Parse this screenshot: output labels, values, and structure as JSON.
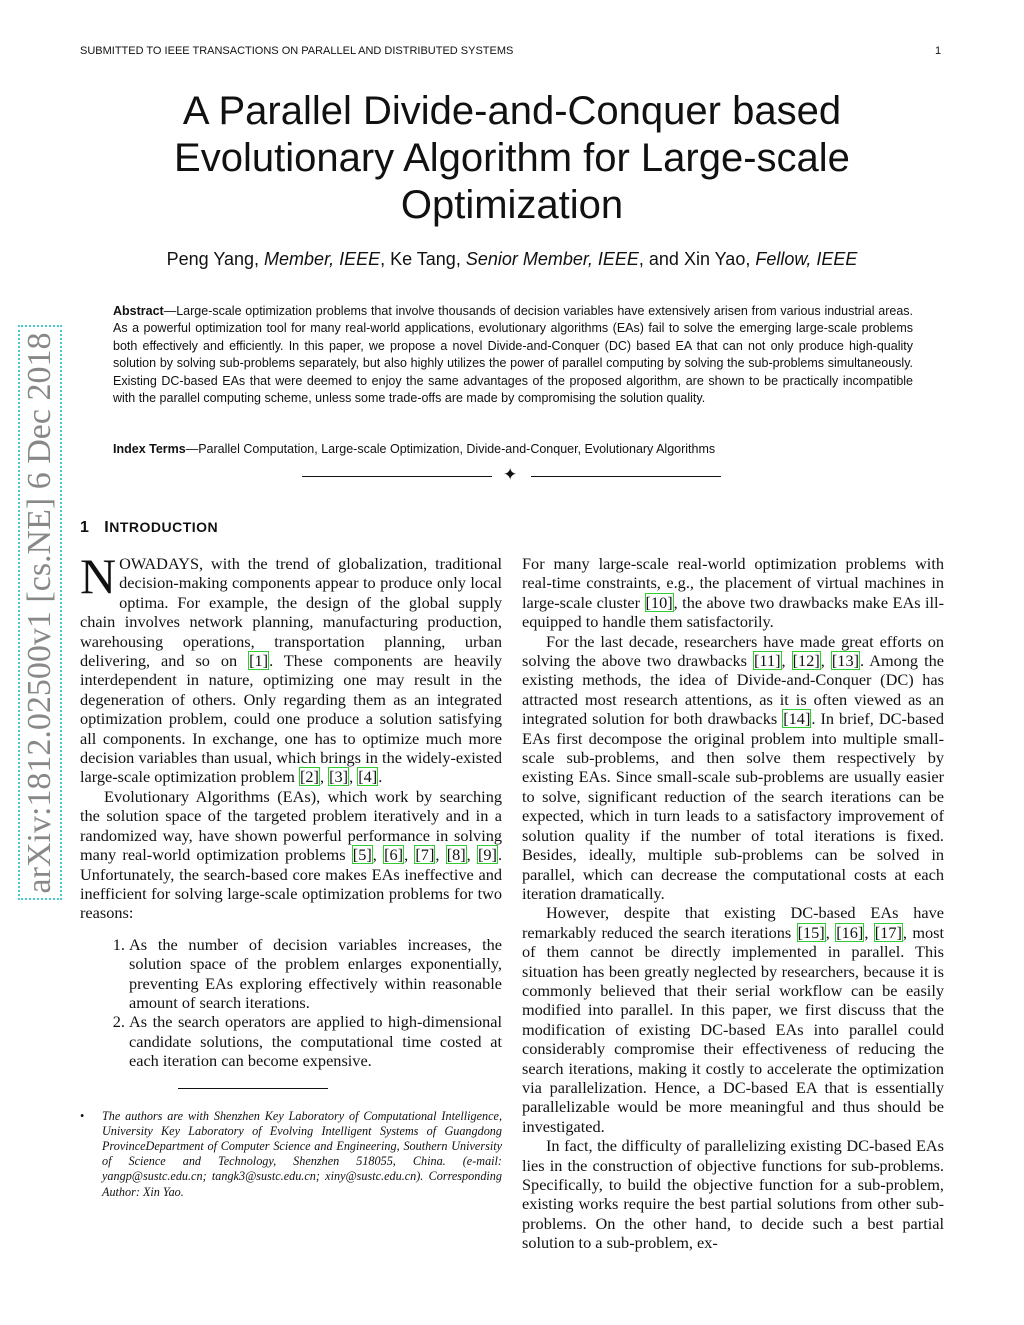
{
  "header": {
    "running_head": "SUBMITTED TO IEEE TRANSACTIONS ON PARALLEL AND DISTRIBUTED SYSTEMS",
    "page_number": "1"
  },
  "title": [
    "A Parallel Divide-and-Conquer based",
    "Evolutionary Algorithm for Large-scale",
    "Optimization"
  ],
  "authors": {
    "a1": "Peng Yang, ",
    "a1_role": "Member, IEEE",
    "a2": ", Ke Tang, ",
    "a2_role": "Senior Member, IEEE",
    "a3": ", and Xin Yao, ",
    "a3_role": "Fellow, IEEE"
  },
  "abstract": {
    "label": "Abstract",
    "text": "—Large-scale optimization problems that involve thousands of decision variables have extensively arisen from various industrial areas. As a powerful optimization tool for many real-world applications, evolutionary algorithms (EAs) fail to solve the emerging large-scale problems both effectively and efficiently. In this paper, we propose a novel Divide-and-Conquer (DC) based EA that can not only produce high-quality solution by solving sub-problems separately, but also highly utilizes the power of parallel computing by solving the sub-problems simultaneously. Existing DC-based EAs that were deemed to enjoy the same advantages of the proposed algorithm, are shown to be practically incompatible with the parallel computing scheme, unless some trade-offs are made by compromising the solution quality."
  },
  "index_terms": {
    "label": "Index Terms",
    "text": "—Parallel Computation, Large-scale Optimization, Divide-and-Conquer, Evolutionary Algorithms"
  },
  "divider_symbol": "✦",
  "section": {
    "number": "1",
    "first": "I",
    "rest": "NTRODUCTION"
  },
  "left_column": {
    "dropcap": "N",
    "p1": [
      "OWADAYS, with the trend of globalization, traditional decision-making components appear to produce only local optima. For example, the design of the global supply chain involves network planning, manufacturing production, warehousing operations, transportation planning, urban delivering, and so on ",
      "[1]",
      ". These components are heavily interdependent in nature, optimizing one may result in the degeneration of others. Only regarding them as an integrated optimization problem, could one produce a solution satisfying all components. In exchange, one has to optimize much more decision variables than usual, which brings in the widely-existed large-scale optimization problem ",
      "[2]",
      ", ",
      "[3]",
      ", ",
      "[4]",
      "."
    ],
    "p2": [
      "Evolutionary Algorithms (EAs), which work by searching the solution space of the targeted problem iteratively and in a randomized way, have shown powerful performance in solving many real-world optimization problems ",
      "[5]",
      ", ",
      "[6]",
      ", ",
      "[7]",
      ", ",
      "[8]",
      ", ",
      "[9]",
      ". Unfortunately, the search-based core makes EAs ineffective and inefficient for solving large-scale optimization problems for two reasons:"
    ],
    "list": [
      "As the number of decision variables increases, the solution space of the problem enlarges exponentially, preventing EAs exploring effectively within reasonable amount of search iterations.",
      "As the search operators are applied to high-dimensional candidate solutions, the computational time costed at each iteration can become expensive."
    ],
    "footnote": "The authors are with Shenzhen Key Laboratory of Computational Intelligence, University Key Laboratory of Evolving Intelligent Systems of Guangdong ProvinceDepartment of Computer Science and Engineering, Southern University of Science and Technology, Shenzhen 518055, China. (e-mail: yangp@sustc.edu.cn; tangk3@sustc.edu.cn; xiny@sustc.edu.cn). Corresponding Author: Xin Yao."
  },
  "right_column": {
    "p1": [
      "For many large-scale real-world optimization problems with real-time constraints, e.g., the placement of virtual machines in large-scale cluster ",
      "[10]",
      ", the above two drawbacks make EAs ill-equipped to handle them satisfactorily."
    ],
    "p2": [
      "For the last decade, researchers have made great efforts on solving the above two drawbacks ",
      "[11]",
      ", ",
      "[12]",
      ", ",
      "[13]",
      ". Among the existing methods, the idea of Divide-and-Conquer (DC) has attracted most research attentions, as it is often viewed as an integrated solution for both drawbacks ",
      "[14]",
      ". In brief, DC-based EAs first decompose the original problem into multiple small-scale sub-problems, and then solve them respectively by existing EAs. Since small-scale sub-problems are usually easier to solve, significant reduction of the search iterations can be expected, which in turn leads to a satisfactory improvement of solution quality if the number of total iterations is fixed. Besides, ideally, multiple sub-problems can be solved in parallel, which can decrease the computational costs at each iteration dramatically."
    ],
    "p3": [
      "However, despite that existing DC-based EAs have remarkably reduced the search iterations ",
      "[15]",
      ", ",
      "[16]",
      ", ",
      "[17]",
      ", most of them cannot be directly implemented in parallel. This situation has been greatly neglected by researchers, because it is commonly believed that their serial workflow can be easily modified into parallel. In this paper, we first discuss that the modification of existing DC-based EAs into parallel could considerably compromise their effectiveness of reducing the search iterations, making it costly to accelerate the optimization via parallelization. Hence, a DC-based EA that is essentially parallelizable would be more meaningful and thus should be investigated."
    ],
    "p4": [
      "In fact, the difficulty of parallelizing existing DC-based EAs lies in the construction of objective functions for sub-problems. Specifically, to build the objective function for a sub-problem, existing works require the best partial solutions from other sub-problems. On the other hand, to decide such a best partial solution to a sub-problem, ex-"
    ]
  },
  "arxiv_stamp": "arXiv:1812.02500v1  [cs.NE]  6 Dec 2018",
  "colors": {
    "citation_box": "#33cc33",
    "stamp_border": "#44cccc",
    "stamp_text": "#888888"
  }
}
